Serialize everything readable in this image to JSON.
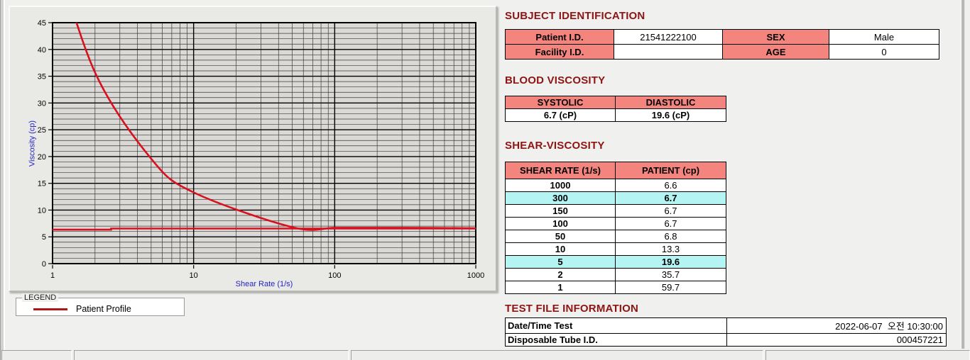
{
  "colors": {
    "page_bg": "#f0f0ee",
    "section_title": "#8e1414",
    "table_header_pink": "#f3857e",
    "highlight_cyan": "#b4f5f3",
    "curve_red": "#d8101f",
    "legend_red": "#b01818",
    "axis_title_blue": "#2424c4"
  },
  "legend": {
    "box_label": "LEGEND",
    "entries": [
      {
        "label": "Patient Profile",
        "color": "#b01818"
      }
    ]
  },
  "subject_identification": {
    "title": "SUBJECT IDENTIFICATION",
    "rows": [
      {
        "label1": "Patient I.D.",
        "value1": "21541222100",
        "label2": "SEX",
        "value2": "Male"
      },
      {
        "label1": "Facility I.D.",
        "value1": "",
        "label2": "AGE",
        "value2": "0"
      }
    ]
  },
  "blood_viscosity": {
    "title": "BLOOD VISCOSITY",
    "headers": [
      "SYSTOLIC",
      "DIASTOLIC"
    ],
    "values": [
      "6.7 (cP)",
      "19.6 (cP)"
    ]
  },
  "shear_viscosity": {
    "title": "SHEAR-VISCOSITY",
    "headers": [
      "SHEAR RATE (1/s)",
      "PATIENT (cp)"
    ],
    "rows": [
      {
        "rate": "1000",
        "value": "6.6",
        "highlight": false
      },
      {
        "rate": "300",
        "value": "6.7",
        "highlight": true
      },
      {
        "rate": "150",
        "value": "6.7",
        "highlight": false
      },
      {
        "rate": "100",
        "value": "6.7",
        "highlight": false
      },
      {
        "rate": "50",
        "value": "6.8",
        "highlight": false
      },
      {
        "rate": "10",
        "value": "13.3",
        "highlight": false
      },
      {
        "rate": "5",
        "value": "19.6",
        "highlight": true
      },
      {
        "rate": "2",
        "value": "35.7",
        "highlight": false
      },
      {
        "rate": "1",
        "value": "59.7",
        "highlight": false
      }
    ]
  },
  "test_file_information": {
    "title": "TEST FILE INFORMATION",
    "rows": [
      {
        "label": "Date/Time Test",
        "value": "2022-06-07  오전 10:30:00"
      },
      {
        "label": "Disposable Tube I.D.",
        "value": "000457221"
      }
    ]
  },
  "chart_data": {
    "type": "line",
    "title": "",
    "xlabel": "Shear Rate (1/s)",
    "ylabel": "Viscosity (cp)",
    "x_scale": "log",
    "xlim": [
      1,
      1000
    ],
    "ylim": [
      0,
      45
    ],
    "x_ticks": [
      1,
      10,
      100,
      1000
    ],
    "y_ticks": [
      0,
      5,
      10,
      15,
      20,
      25,
      30,
      35,
      40,
      45
    ],
    "grid": "major+minor",
    "legend_position": "below-left",
    "series": [
      {
        "name": "Patient Profile",
        "color": "#d8101f",
        "smooth": true,
        "x": [
          1,
          2,
          5,
          10,
          50,
          100,
          150,
          300,
          1000
        ],
        "y": [
          59.7,
          35.7,
          19.6,
          13.3,
          6.8,
          6.7,
          6.7,
          6.7,
          6.6
        ]
      },
      {
        "name": "",
        "color": "#d8101f",
        "smooth": false,
        "x": [
          1,
          2.6,
          2.6,
          1000
        ],
        "y": [
          6.35,
          6.35,
          6.55,
          6.55
        ]
      }
    ]
  }
}
